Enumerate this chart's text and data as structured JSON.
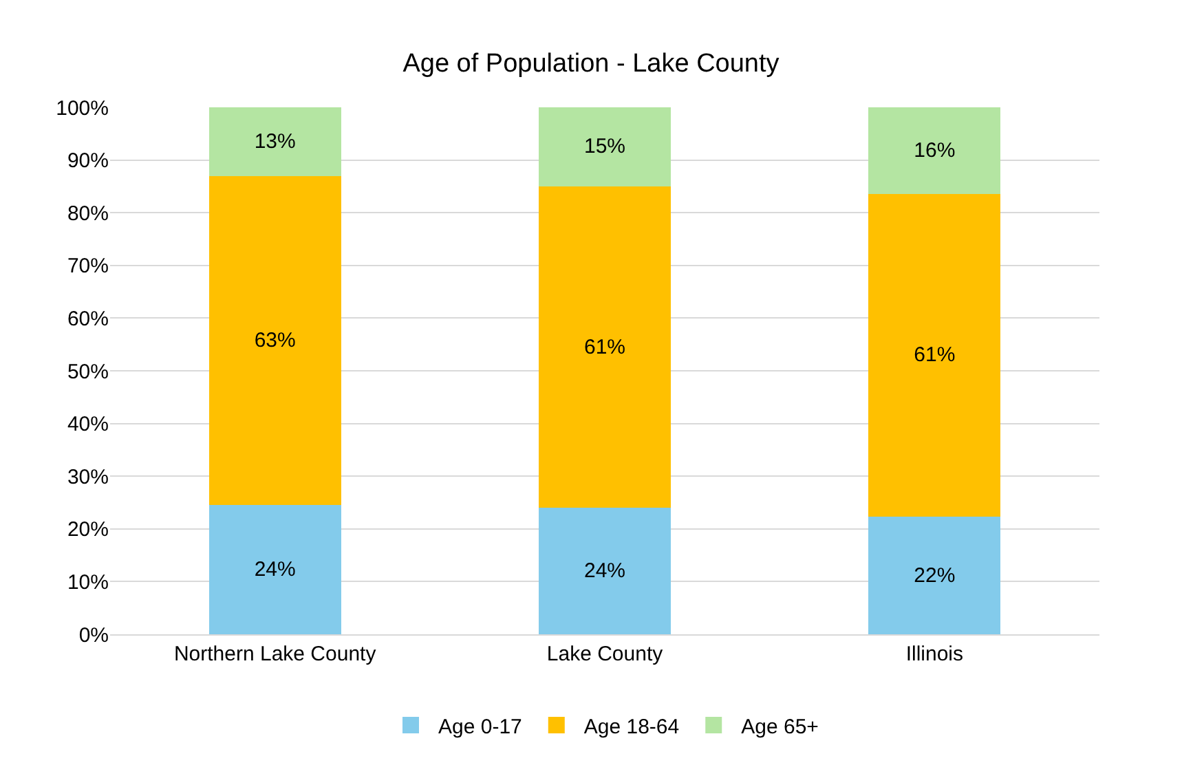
{
  "chart_data": {
    "type": "bar",
    "title": "Age of Population - Lake County",
    "categories": [
      "Northern Lake County",
      "Lake County",
      "Illinois"
    ],
    "stacked": true,
    "series": [
      {
        "name": "Age 0-17",
        "color": "#83cbeb",
        "values": [
          24.5,
          24,
          22.3
        ],
        "value_labels": [
          "24%",
          "24%",
          "22%"
        ]
      },
      {
        "name": "Age 18-64",
        "color": "#ffc000",
        "values": [
          62.5,
          61,
          61.3
        ],
        "value_labels": [
          "63%",
          "61%",
          "61%"
        ]
      },
      {
        "name": "Age 65+",
        "color": "#b4e5a2",
        "values": [
          13,
          15,
          16.4
        ],
        "value_labels": [
          "13%",
          "15%",
          "16%"
        ]
      }
    ],
    "ylim": [
      0,
      100
    ],
    "yticks": [
      {
        "value": 0,
        "label": "0%"
      },
      {
        "value": 10,
        "label": "10%"
      },
      {
        "value": 20,
        "label": "20%"
      },
      {
        "value": 30,
        "label": "30%"
      },
      {
        "value": 40,
        "label": "40%"
      },
      {
        "value": 50,
        "label": "50%"
      },
      {
        "value": 60,
        "label": "60%"
      },
      {
        "value": 70,
        "label": "70%"
      },
      {
        "value": 80,
        "label": "80%"
      },
      {
        "value": 90,
        "label": "90%"
      },
      {
        "value": 100,
        "label": "100%"
      }
    ],
    "grid": "y",
    "legend": "bottom"
  }
}
